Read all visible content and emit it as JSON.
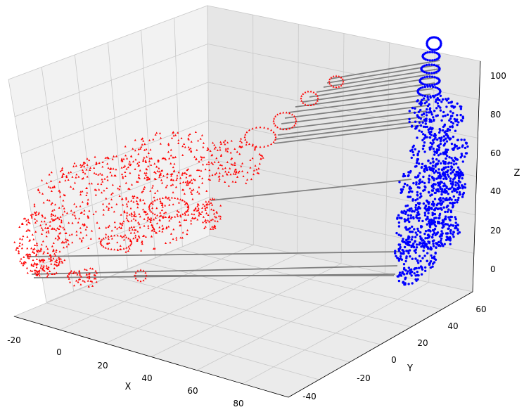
{
  "chart_data": {
    "type": "scatter",
    "dimensions": 3,
    "title": "",
    "xlabel": "X",
    "ylabel": "Y",
    "zlabel": "Z",
    "xlim": [
      -25,
      95
    ],
    "ylim": [
      -50,
      65
    ],
    "zlim": [
      -10,
      110
    ],
    "xticks": [
      "-20",
      "0",
      "20",
      "40",
      "60",
      "80"
    ],
    "yticks": [
      "-40",
      "-20",
      "0",
      "20",
      "40",
      "60"
    ],
    "zticks": [
      "0",
      "20",
      "40",
      "60",
      "80",
      "100"
    ],
    "grid": true,
    "legend": "none",
    "series": [
      {
        "color": "#ff0000",
        "marker": "triangle"
      },
      {
        "color": "#0000ff",
        "marker": "dot"
      }
    ],
    "correspondence_line_color": "#808080",
    "correspondence_lines": 30
  }
}
